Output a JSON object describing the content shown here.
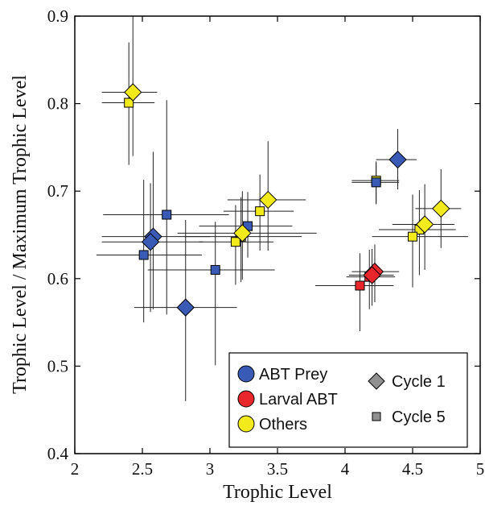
{
  "chart_data": {
    "type": "scatter",
    "title": "",
    "xlabel": "Trophic Level",
    "ylabel": "Trophic Level / Maximum Trophic Level",
    "xlim": [
      2,
      5
    ],
    "ylim": [
      0.4,
      0.9
    ],
    "xticks": [
      "2",
      "2.5",
      "3",
      "3.5",
      "4",
      "4.5",
      "5"
    ],
    "yticks": [
      "0.4",
      "0.5",
      "0.6",
      "0.7",
      "0.8",
      "0.9"
    ],
    "grid": false,
    "legend_position": "bottom-right",
    "error_bars": true,
    "groups": [
      {
        "name": "ABT Prey",
        "color": "#3a5bb5"
      },
      {
        "name": "Larval ABT",
        "color": "#e8262b"
      },
      {
        "name": "Others",
        "color": "#f2ea1a"
      }
    ],
    "markers": [
      {
        "name": "Cycle 1",
        "shape": "diamond",
        "color": "#909090"
      },
      {
        "name": "Cycle 5",
        "shape": "square",
        "color": "#909090"
      }
    ],
    "points": [
      {
        "group": "Others",
        "cycle": "Cycle 1",
        "x": 2.43,
        "y": 0.813,
        "xerr": [
          0.23,
          0.18
        ],
        "yerr": [
          0.073,
          0.087
        ]
      },
      {
        "group": "Others",
        "cycle": "Cycle 5",
        "x": 2.4,
        "y": 0.801,
        "xerr": [
          0.2,
          0.19
        ],
        "yerr": [
          0.071,
          0.069
        ]
      },
      {
        "group": "ABT Prey",
        "cycle": "Cycle 5",
        "x": 2.68,
        "y": 0.673,
        "xerr": [
          0.47,
          0.46
        ],
        "yerr": [
          0.114,
          0.131
        ]
      },
      {
        "group": "ABT Prey",
        "cycle": "Cycle 1",
        "x": 2.58,
        "y": 0.648,
        "xerr": [
          0.38,
          0.42
        ],
        "yerr": [
          0.083,
          0.097
        ]
      },
      {
        "group": "ABT Prey",
        "cycle": "Cycle 1",
        "x": 2.56,
        "y": 0.642,
        "xerr": [
          0.36,
          0.39
        ],
        "yerr": [
          0.08,
          0.067
        ]
      },
      {
        "group": "ABT Prey",
        "cycle": "Cycle 5",
        "x": 2.51,
        "y": 0.627,
        "xerr": [
          0.35,
          0.43
        ],
        "yerr": [
          0.077,
          0.086
        ]
      },
      {
        "group": "ABT Prey",
        "cycle": "Cycle 1",
        "x": 2.82,
        "y": 0.567,
        "xerr": [
          0.38,
          0.38
        ],
        "yerr": [
          0.107,
          0.1
        ]
      },
      {
        "group": "ABT Prey",
        "cycle": "Cycle 5",
        "x": 3.04,
        "y": 0.61,
        "xerr": [
          0.5,
          0.44
        ],
        "yerr": [
          0.109,
          0.055
        ]
      },
      {
        "group": "ABT Prey",
        "cycle": "Cycle 5",
        "x": 3.28,
        "y": 0.66,
        "xerr": [
          0.36,
          0.33
        ],
        "yerr": [
          0.036,
          0.039
        ]
      },
      {
        "group": "Others",
        "cycle": "Cycle 1",
        "x": 3.43,
        "y": 0.69,
        "xerr": [
          0.3,
          0.28
        ],
        "yerr": [
          0.058,
          0.067
        ]
      },
      {
        "group": "Others",
        "cycle": "Cycle 5",
        "x": 3.37,
        "y": 0.677,
        "xerr": [
          0.27,
          0.25
        ],
        "yerr": [
          0.045,
          0.042
        ]
      },
      {
        "group": "Others",
        "cycle": "Cycle 1",
        "x": 3.24,
        "y": 0.652,
        "xerr": [
          0.48,
          0.55
        ],
        "yerr": [
          0.053,
          0.048
        ]
      },
      {
        "group": "Others",
        "cycle": "Cycle 5",
        "x": 3.23,
        "y": 0.648,
        "xerr": [
          0.42,
          0.45
        ],
        "yerr": [
          0.052,
          0.045
        ]
      },
      {
        "group": "Others",
        "cycle": "Cycle 5",
        "x": 3.19,
        "y": 0.642,
        "xerr": [
          0.27,
          0.28
        ],
        "yerr": [
          0.049,
          0.042
        ]
      },
      {
        "group": "ABT Prey",
        "cycle": "Cycle 1",
        "x": 4.39,
        "y": 0.736,
        "xerr": [
          0.16,
          0.14
        ],
        "yerr": [
          0.034,
          0.035
        ]
      },
      {
        "group": "Others",
        "cycle": "Cycle 5",
        "x": 4.23,
        "y": 0.712,
        "xerr": [
          0.18,
          0.17
        ],
        "yerr": [
          0.026,
          0.022
        ]
      },
      {
        "group": "ABT Prey",
        "cycle": "Cycle 5",
        "x": 4.23,
        "y": 0.71,
        "xerr": [
          0.18,
          0.17
        ],
        "yerr": [
          0.025,
          0.022
        ]
      },
      {
        "group": "Others",
        "cycle": "Cycle 1",
        "x": 4.71,
        "y": 0.68,
        "xerr": [
          0.19,
          0.15
        ],
        "yerr": [
          0.045,
          0.045
        ]
      },
      {
        "group": "Others",
        "cycle": "Cycle 1",
        "x": 4.59,
        "y": 0.662,
        "xerr": [
          0.24,
          0.22
        ],
        "yerr": [
          0.052,
          0.046
        ]
      },
      {
        "group": "Others",
        "cycle": "Cycle 5",
        "x": 4.55,
        "y": 0.656,
        "xerr": [
          0.3,
          0.27
        ],
        "yerr": [
          0.052,
          0.045
        ]
      },
      {
        "group": "Others",
        "cycle": "Cycle 5",
        "x": 4.5,
        "y": 0.648,
        "xerr": [
          0.3,
          0.41
        ],
        "yerr": [
          0.058,
          0.048
        ]
      },
      {
        "group": "Larval ABT",
        "cycle": "Cycle 1",
        "x": 4.22,
        "y": 0.608,
        "xerr": [
          0.17,
          0.18
        ],
        "yerr": [
          0.035,
          0.031
        ]
      },
      {
        "group": "Larval ABT",
        "cycle": "Cycle 1",
        "x": 4.2,
        "y": 0.604,
        "xerr": [
          0.17,
          0.16
        ],
        "yerr": [
          0.035,
          0.03
        ]
      },
      {
        "group": "Larval ABT",
        "cycle": "Cycle 5",
        "x": 4.18,
        "y": 0.602,
        "xerr": [
          0.17,
          0.19
        ],
        "yerr": [
          0.037,
          0.031
        ]
      },
      {
        "group": "Larval ABT",
        "cycle": "Cycle 5",
        "x": 4.11,
        "y": 0.592,
        "xerr": [
          0.33,
          0.25
        ],
        "yerr": [
          0.052,
          0.037
        ]
      }
    ]
  }
}
